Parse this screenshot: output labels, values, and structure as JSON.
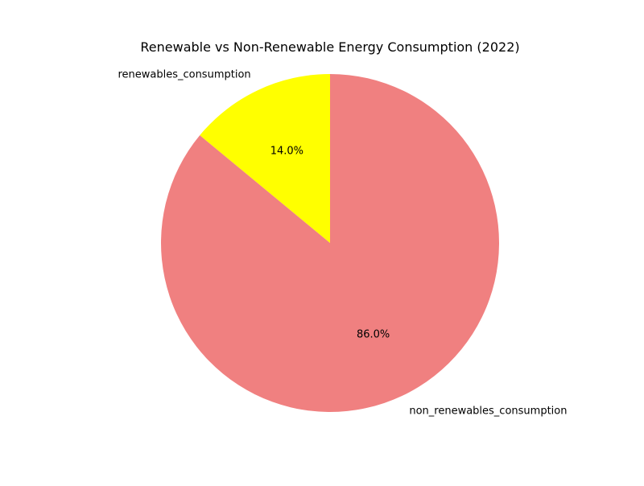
{
  "chart_data": {
    "type": "pie",
    "title": "Renewable vs Non-Renewable Energy Consumption (2022)",
    "start_angle_deg": 90,
    "direction": "counterclockwise",
    "slices": [
      {
        "label": "renewables_consumption",
        "value": 14.0,
        "pct_label": "14.0%",
        "color": "#ffff00"
      },
      {
        "label": "non_renewables_consumption",
        "value": 86.0,
        "pct_label": "86.0%",
        "color": "#f08080"
      }
    ]
  }
}
